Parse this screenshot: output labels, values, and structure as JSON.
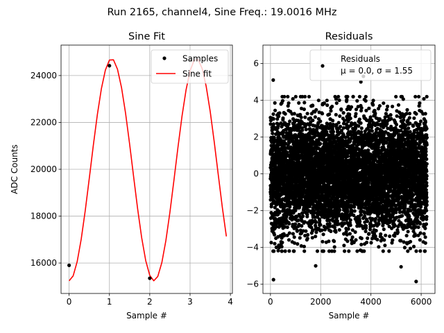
{
  "figure": {
    "suptitle": "Run 2165, channel4, Sine Freq.: 19.0016 MHz"
  },
  "chart_data": [
    {
      "type": "line",
      "title": "Sine Fit",
      "xlabel": "Sample #",
      "ylabel": "ADC Counts",
      "xlim": [
        -0.2,
        4.05
      ],
      "ylim": [
        14700,
        25300
      ],
      "xticks": [
        0,
        1,
        2,
        3,
        4
      ],
      "yticks": [
        16000,
        18000,
        20000,
        22000,
        24000
      ],
      "grid": true,
      "legend_position": "upper-right",
      "samples": {
        "name": "Samples",
        "color": "#000000",
        "x": [
          0,
          1,
          2,
          3
        ],
        "y": [
          15900,
          24420,
          15350,
          24650
        ]
      },
      "fit": {
        "name": "Sine fit",
        "color": "#ff0000",
        "freq_cycles_per_sample": 0.475,
        "mean": 19980,
        "amplitude": 4740,
        "x_start": 0,
        "x_end": 3.9,
        "x_step": 0.1
      }
    },
    {
      "type": "scatter",
      "title": "Residuals",
      "xlabel": "Sample #",
      "ylabel": "",
      "xlim": [
        -300,
        6550
      ],
      "ylim": [
        -6.5,
        7
      ],
      "xticks": [
        0,
        2000,
        4000,
        6000
      ],
      "yticks": [
        -6,
        -4,
        -2,
        0,
        2,
        4,
        6
      ],
      "grid": true,
      "legend_position": "upper-right",
      "color": "#000000",
      "n_points": 6250,
      "mean": 0.0,
      "sigma": 1.55,
      "legend_label": "Residuals",
      "legend_stats": "μ = 0.0, σ = 1.55",
      "outliers": [
        {
          "x": 120,
          "y": -5.75
        },
        {
          "x": 110,
          "y": 5.1
        },
        {
          "x": 5800,
          "y": -5.85
        },
        {
          "x": 3600,
          "y": 5.0
        },
        {
          "x": 3700,
          "y": 5.3
        },
        {
          "x": 5200,
          "y": -5.05
        },
        {
          "x": 1800,
          "y": -5.0
        }
      ]
    }
  ]
}
